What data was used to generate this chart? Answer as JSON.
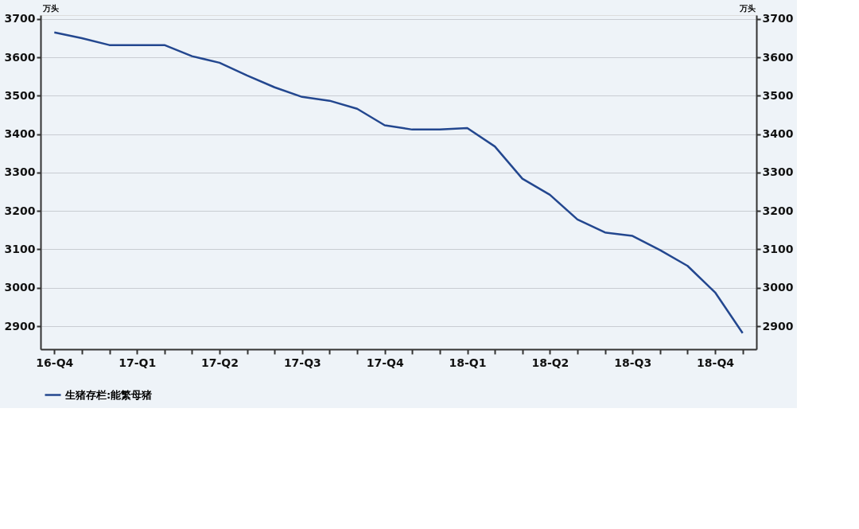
{
  "chart_data": {
    "type": "line",
    "categories": [
      "16-Q4",
      null,
      null,
      "17-Q1",
      null,
      null,
      "17-Q2",
      null,
      null,
      "17-Q3",
      null,
      null,
      "17-Q4",
      null,
      null,
      "18-Q1",
      null,
      null,
      "18-Q2",
      null,
      null,
      "18-Q3",
      null,
      null,
      "18-Q4",
      null
    ],
    "series": [
      {
        "name": "生猪存栏:能繁母猪",
        "color": "#23478f",
        "values": [
          3665,
          3650,
          3632,
          3632,
          3632,
          3603,
          3586,
          3553,
          3522,
          3497,
          3487,
          3466,
          3423,
          3412,
          3412,
          3416,
          3368,
          3284,
          3242,
          3178,
          3144,
          3135,
          3098,
          3057,
          2988,
          2882
        ]
      }
    ],
    "ylabel": "万头",
    "y2label": "万头",
    "ylim": [
      2840,
      3710
    ],
    "yticks": [
      2900,
      3000,
      3100,
      3200,
      3300,
      3400,
      3500,
      3600,
      3700
    ],
    "y2lim": [
      2840,
      3710
    ],
    "y2ticks": [
      2900,
      3000,
      3100,
      3200,
      3300,
      3400,
      3500,
      3600,
      3700
    ],
    "grid": "y",
    "legend": "bottom",
    "marker": "none",
    "line_style": "solid"
  }
}
